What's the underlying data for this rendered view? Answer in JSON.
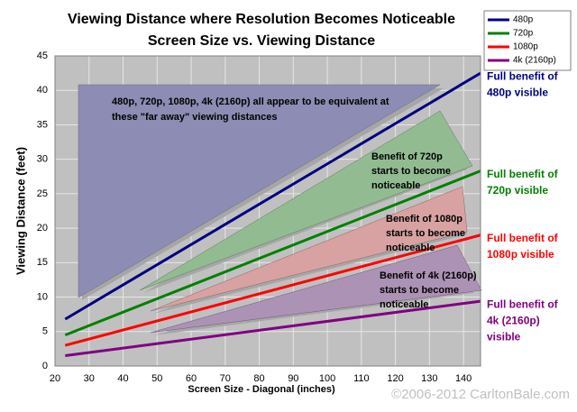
{
  "chart_data": {
    "type": "line",
    "title": "Viewing Distance where Resolution Becomes Noticeable",
    "subtitle": "Screen Size vs. Viewing Distance",
    "x_label": "Screen Size - Diagonal (inches)",
    "y_label": "Viewing Distance (feet)",
    "x": [
      23,
      145
    ],
    "xlim": [
      20,
      145
    ],
    "xticks": [
      20,
      30,
      40,
      50,
      60,
      70,
      80,
      90,
      100,
      110,
      120,
      130,
      140
    ],
    "ylim": [
      0,
      45
    ],
    "yticks": [
      0,
      5,
      10,
      15,
      20,
      25,
      30,
      35,
      40,
      45
    ],
    "grid": true,
    "legend": "top-right",
    "series": [
      {
        "name": "480p",
        "color": "#000080",
        "values": [
          6.8,
          42.5
        ],
        "annotation": [
          "Full benefit of",
          "480p visible"
        ]
      },
      {
        "name": "720p",
        "color": "#008000",
        "values": [
          4.5,
          28.3
        ],
        "annotation": [
          "Full benefit of",
          "720p visible"
        ]
      },
      {
        "name": "1080p",
        "color": "#ff0000",
        "values": [
          3,
          19
        ],
        "annotation": [
          "Full benefit of",
          "1080p visible"
        ]
      },
      {
        "name": "4k (2160p)",
        "color": "#800080",
        "values": [
          1.5,
          9.4
        ],
        "annotation": [
          "Full benefit of",
          "4k (2160p)",
          "visible"
        ]
      }
    ],
    "region_labels": [
      [
        "480p, 720p, 1080p, 4k (2160p) all appear to be equivalent at",
        "these \"far away\" viewing distances"
      ],
      [
        "Benefit of 720p",
        "starts to become",
        "noticeable"
      ],
      [
        "Benefit of 1080p",
        "starts to become",
        "noticeable"
      ],
      [
        "Benefit of 4k (2160p)",
        "starts to become",
        "noticeable"
      ]
    ],
    "credit": "©2006-2012 CarltonBale.com"
  }
}
